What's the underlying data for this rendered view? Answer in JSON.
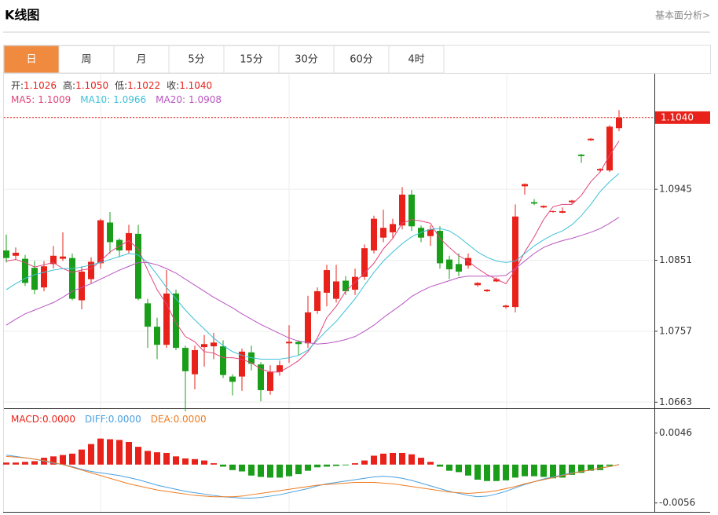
{
  "header": {
    "title": "K线图",
    "link": "基本面分析>"
  },
  "tabs": [
    "日",
    "周",
    "月",
    "5分",
    "15分",
    "30分",
    "60分",
    "4时"
  ],
  "active_tab": 0,
  "chart_data": {
    "type": "candlestick",
    "up_color": "#e8221a",
    "down_color": "#1a9e1a",
    "ylim": [
      1.0655,
      1.1097
    ],
    "yticks": [
      {
        "value": 1.104,
        "label": "1.1040"
      },
      {
        "value": 1.0945,
        "label": "1.0945"
      },
      {
        "value": 1.0851,
        "label": "1.0851"
      },
      {
        "value": 1.0757,
        "label": "1.0757"
      },
      {
        "value": 1.0663,
        "label": "1.0663"
      }
    ],
    "summary": [
      {
        "label": "开:",
        "value_label": "1.1026"
      },
      {
        "label": "高:",
        "value_label": "1.1050"
      },
      {
        "label": "低:",
        "value_label": "1.1022"
      },
      {
        "label": "收:",
        "value_label": "1.1040"
      }
    ],
    "candles": {
      "open": [
        1.0864,
        1.0857,
        1.0853,
        1.0841,
        1.0815,
        1.0846,
        1.0853,
        1.0854,
        1.0798,
        1.0826,
        1.0847,
        1.0901,
        1.0878,
        1.0864,
        1.0886,
        1.0794,
        1.0763,
        1.0739,
        1.0807,
        1.0735,
        1.07,
        1.0736,
        1.0737,
        1.0737,
        1.0697,
        1.0697,
        1.0729,
        1.0713,
        1.0678,
        1.0703,
        1.0741,
        1.0743,
        1.0741,
        1.0784,
        1.0808,
        1.08,
        1.0824,
        1.0812,
        1.0829,
        1.0864,
        1.0881,
        1.0888,
        1.0897,
        1.0938,
        1.0894,
        1.0883,
        1.089,
        1.0852,
        1.0846,
        1.0844,
        1.0818,
        1.081,
        1.0823,
        1.0789,
        1.0789,
        1.0949,
        1.0928,
        1.0921,
        1.0915,
        1.0914,
        1.0928,
        1.0991,
        1.101,
        1.097,
        1.097,
        1.1026
      ],
      "high": [
        1.0885,
        1.0868,
        1.0858,
        1.085,
        1.085,
        1.087,
        1.0888,
        1.086,
        1.0843,
        1.0855,
        1.0906,
        1.0915,
        1.088,
        1.0898,
        1.0898,
        1.08,
        1.0775,
        1.0838,
        1.0812,
        1.0738,
        1.0738,
        1.0752,
        1.0755,
        1.0745,
        1.07,
        1.0734,
        1.0738,
        1.0716,
        1.0712,
        1.0718,
        1.0765,
        1.0745,
        1.0804,
        1.0815,
        1.0845,
        1.0845,
        1.083,
        1.084,
        1.0872,
        1.091,
        1.0918,
        1.0906,
        1.0948,
        1.0944,
        1.0897,
        1.0897,
        1.0896,
        1.0857,
        1.086,
        1.086,
        1.0822,
        1.0813,
        1.0828,
        1.0792,
        1.0925,
        1.0953,
        1.0932,
        1.0924,
        1.0917,
        1.0921,
        1.0931,
        1.0992,
        1.1013,
        1.0973,
        1.103,
        1.105
      ],
      "low": [
        1.0848,
        1.0852,
        1.0817,
        1.0806,
        1.081,
        1.084,
        1.085,
        1.0798,
        1.0786,
        1.082,
        1.084,
        1.086,
        1.0855,
        1.086,
        1.0798,
        1.0735,
        1.072,
        1.0735,
        1.0732,
        1.0651,
        1.068,
        1.071,
        1.072,
        1.0695,
        1.0672,
        1.0678,
        1.0705,
        1.0664,
        1.0673,
        1.0698,
        1.0715,
        1.0725,
        1.0735,
        1.078,
        1.079,
        1.0795,
        1.0805,
        1.0805,
        1.0825,
        1.086,
        1.0875,
        1.088,
        1.0892,
        1.089,
        1.0875,
        1.087,
        1.084,
        1.0826,
        1.083,
        1.084,
        1.0816,
        1.0809,
        1.0822,
        1.0787,
        1.0782,
        1.0938,
        1.0924,
        1.092,
        1.0914,
        1.0913,
        1.0926,
        1.098,
        1.1009,
        1.0968,
        1.0968,
        1.1022
      ],
      "close": [
        1.0854,
        1.0861,
        1.0821,
        1.0812,
        1.0843,
        1.0857,
        1.0856,
        1.08,
        1.0836,
        1.0849,
        1.0904,
        1.0875,
        1.0864,
        1.0887,
        1.08,
        1.0763,
        1.0739,
        1.0807,
        1.0735,
        1.0704,
        1.0732,
        1.074,
        1.0742,
        1.0699,
        1.069,
        1.073,
        1.0714,
        1.0679,
        1.0703,
        1.0712,
        1.0743,
        1.074,
        1.0782,
        1.081,
        1.0838,
        1.0823,
        1.081,
        1.0829,
        1.0867,
        1.0906,
        1.0894,
        1.0899,
        1.0938,
        1.0896,
        1.0881,
        1.0892,
        1.0847,
        1.0839,
        1.0836,
        1.0854,
        1.0821,
        1.0812,
        1.0826,
        1.0791,
        1.0909,
        1.0952,
        1.0926,
        1.0923,
        1.0916,
        1.0916,
        1.093,
        1.0989,
        1.1012,
        1.0972,
        1.1028,
        1.104
      ]
    },
    "series": [
      {
        "legend": "MA5:",
        "last_label": "1.1009",
        "color": "#e0457b",
        "values": [
          1.085,
          1.0852,
          1.0848,
          1.0842,
          1.0845,
          1.0848,
          1.084,
          1.0835,
          1.0838,
          1.084,
          1.085,
          1.0862,
          1.087,
          1.0877,
          1.0866,
          1.0838,
          1.0812,
          1.0793,
          1.0768,
          1.075,
          1.0743,
          1.073,
          1.0728,
          1.0722,
          1.0722,
          1.072,
          1.0715,
          1.0707,
          1.0703,
          1.0703,
          1.071,
          1.0718,
          1.073,
          1.0748,
          1.0775,
          1.079,
          1.081,
          1.0822,
          1.0834,
          1.0847,
          1.0866,
          1.088,
          1.09,
          1.0905,
          1.0903,
          1.09,
          1.088,
          1.0868,
          1.0857,
          1.085,
          1.084,
          1.0832,
          1.0826,
          1.082,
          1.0838,
          1.0862,
          1.0882,
          1.0905,
          1.0922,
          1.0925,
          1.0925,
          1.0937,
          1.0955,
          1.0968,
          1.099,
          1.1009
        ]
      },
      {
        "legend": "MA10:",
        "last_label": "1.0966",
        "color": "#3cc1d8",
        "values": [
          1.0812,
          1.082,
          1.0827,
          1.0832,
          1.0835,
          1.0838,
          1.084,
          1.084,
          1.0842,
          1.0845,
          1.0848,
          1.0852,
          1.0856,
          1.086,
          1.0858,
          1.0848,
          1.0832,
          1.0815,
          1.08,
          1.0785,
          1.0772,
          1.076,
          1.0748,
          1.0738,
          1.073,
          1.0725,
          1.0722,
          1.072,
          1.072,
          1.072,
          1.0722,
          1.0725,
          1.0732,
          1.0745,
          1.0758,
          1.077,
          1.0785,
          1.08,
          1.0818,
          1.0835,
          1.085,
          1.0862,
          1.0873,
          1.0882,
          1.0888,
          1.0892,
          1.0893,
          1.089,
          1.0882,
          1.0872,
          1.0862,
          1.0855,
          1.085,
          1.0848,
          1.085,
          1.086,
          1.087,
          1.0878,
          1.0885,
          1.089,
          1.0898,
          1.091,
          1.0925,
          1.0942,
          1.0955,
          1.0966
        ]
      },
      {
        "legend": "MA20:",
        "last_label": "1.0908",
        "color": "#b855c0",
        "values": [
          1.0765,
          1.0773,
          1.078,
          1.0785,
          1.079,
          1.0795,
          1.0802,
          1.081,
          1.0815,
          1.082,
          1.0826,
          1.0832,
          1.0838,
          1.0843,
          1.0848,
          1.0848,
          1.0845,
          1.084,
          1.0834,
          1.0826,
          1.0818,
          1.081,
          1.0802,
          1.0795,
          1.0788,
          1.078,
          1.0773,
          1.0766,
          1.076,
          1.0754,
          1.0748,
          1.0744,
          1.0742,
          1.074,
          1.0741,
          1.0743,
          1.0746,
          1.075,
          1.0757,
          1.0765,
          1.0775,
          1.0784,
          1.0793,
          1.0803,
          1.081,
          1.0816,
          1.082,
          1.0824,
          1.0828,
          1.083,
          1.083,
          1.083,
          1.083,
          1.0831,
          1.084,
          1.085,
          1.086,
          1.0868,
          1.0873,
          1.0877,
          1.088,
          1.0884,
          1.0888,
          1.0893,
          1.09,
          1.0908
        ]
      }
    ],
    "macd": {
      "legend": "MACD:",
      "last_label": "0.0000",
      "color": "#e8221a",
      "down_color": "#1a9e1a",
      "ylim": [
        -0.0069,
        0.008
      ],
      "yticks": [
        0.0046,
        -0.0056
      ],
      "values": [
        0.0003,
        0.0003,
        0.0004,
        0.0005,
        0.001,
        0.0012,
        0.0014,
        0.0016,
        0.0022,
        0.003,
        0.0038,
        0.0037,
        0.0036,
        0.0033,
        0.0026,
        0.002,
        0.0018,
        0.0017,
        0.0012,
        0.0009,
        0.0008,
        0.0006,
        0.0002,
        -0.0003,
        -0.0008,
        -0.001,
        -0.0016,
        -0.0018,
        -0.0019,
        -0.0019,
        -0.0017,
        -0.0014,
        -0.0009,
        -0.0004,
        -0.0003,
        -0.0002,
        -0.0001,
        0.0002,
        0.0006,
        0.0013,
        0.0016,
        0.0017,
        0.0017,
        0.0015,
        0.001,
        0.0004,
        -0.0003,
        -0.0009,
        -0.0011,
        -0.0016,
        -0.0022,
        -0.0024,
        -0.0024,
        -0.0023,
        -0.0019,
        -0.0017,
        -0.0017,
        -0.0018,
        -0.002,
        -0.0019,
        -0.0015,
        -0.0012,
        -0.0009,
        -0.0008,
        -0.0002,
        0
      ],
      "lines": [
        {
          "legend": "DIFF:",
          "last_label": "0.0000",
          "color": "#4aa0e0",
          "values": [
            0.0014,
            0.0012,
            0.001,
            0.0008,
            0.0005,
            0.0002,
            0,
            -0.0003,
            -0.0007,
            -0.001,
            -0.0012,
            -0.0014,
            -0.0016,
            -0.0019,
            -0.0022,
            -0.0026,
            -0.003,
            -0.0033,
            -0.0036,
            -0.0039,
            -0.0041,
            -0.0043,
            -0.0045,
            -0.0047,
            -0.0048,
            -0.0049,
            -0.0049,
            -0.0048,
            -0.0046,
            -0.0044,
            -0.0041,
            -0.0038,
            -0.0035,
            -0.0031,
            -0.0028,
            -0.0026,
            -0.0024,
            -0.0022,
            -0.002,
            -0.0018,
            -0.0017,
            -0.0018,
            -0.002,
            -0.0023,
            -0.0027,
            -0.0031,
            -0.0035,
            -0.0039,
            -0.0042,
            -0.0045,
            -0.0047,
            -0.0046,
            -0.0043,
            -0.0039,
            -0.0034,
            -0.0029,
            -0.0025,
            -0.0021,
            -0.0018,
            -0.0015,
            -0.0012,
            -0.001,
            -0.0008,
            -0.0005,
            -0.0003,
            0
          ]
        },
        {
          "legend": "DEA:",
          "last_label": "0.0000",
          "color": "#f07c22",
          "values": [
            0.0012,
            0.0011,
            0.001,
            0.0008,
            0.0006,
            0.0003,
            0,
            -0.0004,
            -0.0008,
            -0.0012,
            -0.0016,
            -0.002,
            -0.0024,
            -0.0028,
            -0.0031,
            -0.0034,
            -0.0037,
            -0.0039,
            -0.0041,
            -0.0043,
            -0.0045,
            -0.0046,
            -0.0047,
            -0.0047,
            -0.0047,
            -0.0046,
            -0.0044,
            -0.0042,
            -0.004,
            -0.0038,
            -0.0036,
            -0.0034,
            -0.0032,
            -0.003,
            -0.0029,
            -0.0028,
            -0.0027,
            -0.0026,
            -0.0026,
            -0.0026,
            -0.0027,
            -0.0028,
            -0.003,
            -0.0032,
            -0.0034,
            -0.0036,
            -0.0038,
            -0.004,
            -0.0041,
            -0.0042,
            -0.0041,
            -0.004,
            -0.0038,
            -0.0035,
            -0.0032,
            -0.0028,
            -0.0025,
            -0.0022,
            -0.0019,
            -0.0016,
            -0.0013,
            -0.001,
            -0.0008,
            -0.0005,
            -0.0003,
            0
          ]
        }
      ]
    }
  }
}
